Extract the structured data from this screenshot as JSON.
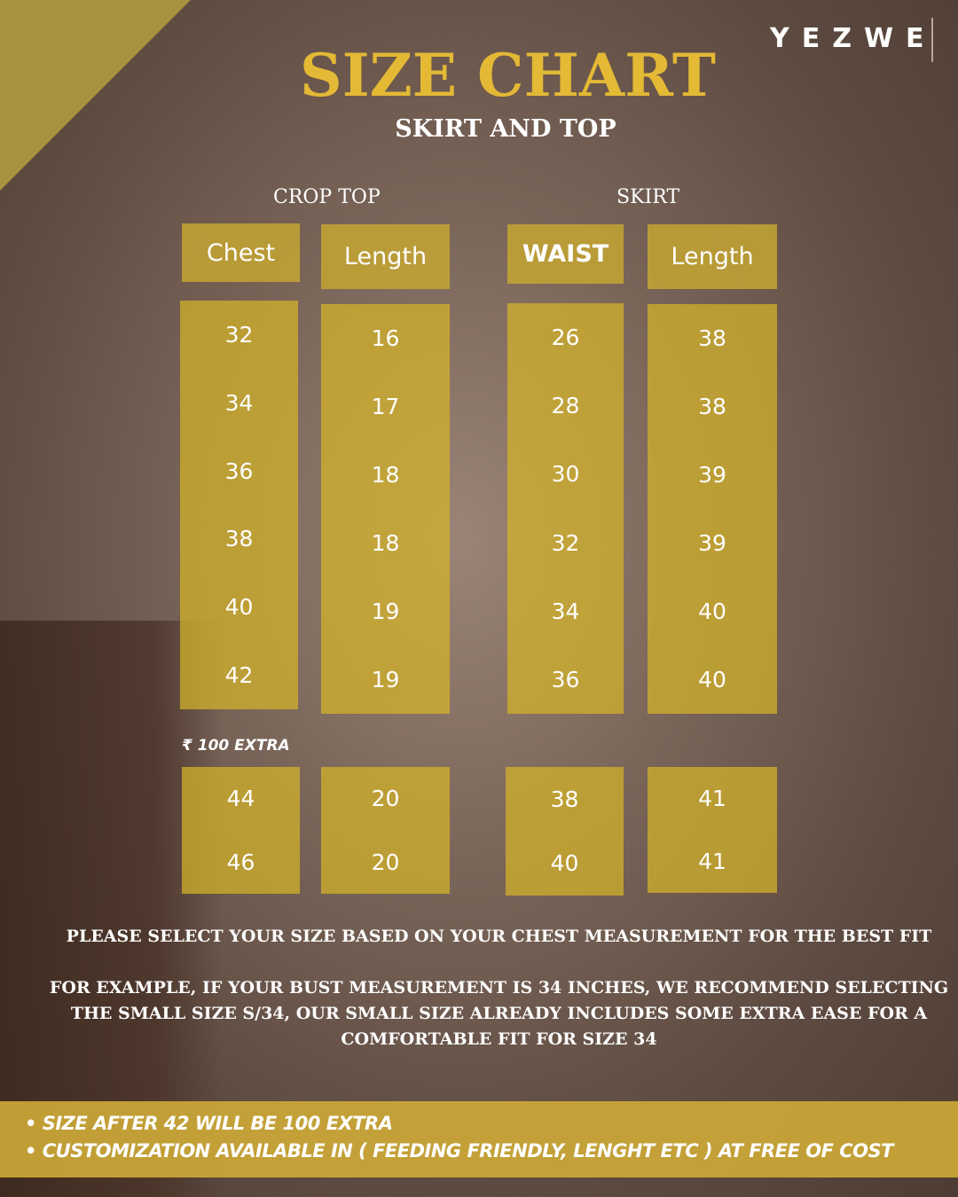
{
  "brand": "YEZWE",
  "title": "SIZE CHART",
  "subtitle": "SKIRT AND TOP",
  "sections": {
    "crop_top": "CROP  TOP",
    "skirt": "SKIRT"
  },
  "columns": [
    {
      "header": "Chest",
      "values": [
        "32",
        "34",
        "36",
        "38",
        "40",
        "42"
      ],
      "extra": [
        "44",
        "46"
      ]
    },
    {
      "header": "Length",
      "values": [
        "16",
        "17",
        "18",
        "18",
        "19",
        "19"
      ],
      "extra": [
        "20",
        "20"
      ]
    },
    {
      "header": "WAIST",
      "values": [
        "26",
        "28",
        "30",
        "32",
        "34",
        "36"
      ],
      "extra": [
        "38",
        "40"
      ]
    },
    {
      "header": "Length",
      "values": [
        "38",
        "38",
        "39",
        "39",
        "40",
        "40"
      ],
      "extra": [
        "41",
        "41"
      ]
    }
  ],
  "extra_label": "₹ 100 EXTRA",
  "notes": [
    "PLEASE SELECT YOUR SIZE BASED ON YOUR CHEST MEASUREMENT FOR THE BEST FIT",
    "FOR EXAMPLE, IF YOUR BUST MEASUREMENT IS 34 INCHES, WE RECOMMEND SELECTING THE SMALL SIZE S/34, OUR SMALL SIZE ALREADY INCLUDES SOME EXTRA EASE FOR A COMFORTABLE FIT FOR SIZE 34"
  ],
  "bullets": [
    "SIZE AFTER 42 WILL BE 100 EXTRA",
    "CUSTOMIZATION AVAILABLE IN ( FEEDING FRIENDLY, LENGHT ETC ) AT FREE OF COST"
  ],
  "colors": {
    "accent": "#e3b935",
    "column": "#d6b428",
    "band": "#cca837"
  }
}
